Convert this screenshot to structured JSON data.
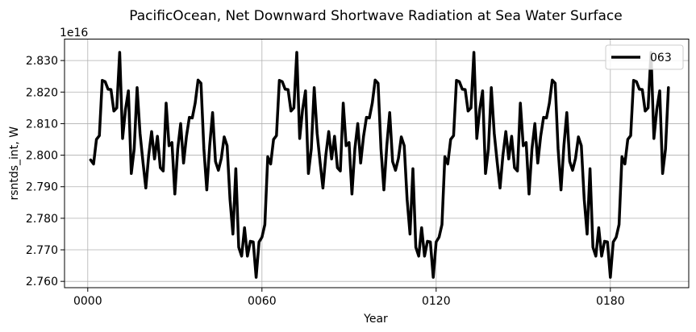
{
  "chart_data": {
    "type": "line",
    "title": "PacificOcean, Net Downward Shortwave Radiation at Sea Water Surface",
    "xlabel": "Year",
    "ylabel": "rsntds_int, W",
    "y_offset_label": "1e16",
    "xlim": [
      -8,
      207
    ],
    "ylim": [
      2.758,
      2.8368
    ],
    "x_ticks": [
      0,
      60,
      120,
      180
    ],
    "x_tick_labels": [
      "0000",
      "0060",
      "0120",
      "0180"
    ],
    "y_ticks": [
      2.76,
      2.77,
      2.78,
      2.79,
      2.8,
      2.81,
      2.82,
      2.83
    ],
    "y_tick_labels": [
      "2.760",
      "2.770",
      "2.780",
      "2.790",
      "2.800",
      "2.810",
      "2.820",
      "2.830"
    ],
    "grid": true,
    "legend_position": "top-right",
    "series": [
      {
        "name": "063",
        "color": "#000000",
        "x": [
          1,
          2,
          3,
          4,
          5,
          6,
          7,
          8,
          9,
          10,
          11,
          12,
          13,
          14,
          15,
          16,
          17,
          18,
          19,
          20,
          21,
          22,
          23,
          24,
          25,
          26,
          27,
          28,
          29,
          30,
          31,
          32,
          33,
          34,
          35,
          36,
          37,
          38,
          39,
          40,
          41,
          42,
          43,
          44,
          45,
          46,
          47,
          48,
          49,
          50,
          51,
          52,
          53,
          54,
          55,
          56,
          57,
          58,
          59,
          60,
          61,
          62,
          63,
          64,
          65,
          66,
          67,
          68,
          69,
          70,
          71,
          72,
          73,
          74,
          75,
          76,
          77,
          78,
          79,
          80,
          81,
          82,
          83,
          84,
          85,
          86,
          87,
          88,
          89,
          90,
          91,
          92,
          93,
          94,
          95,
          96,
          97,
          98,
          99,
          100,
          101,
          102,
          103,
          104,
          105,
          106,
          107,
          108,
          109,
          110,
          111,
          112,
          113,
          114,
          115,
          116,
          117,
          118,
          119,
          120,
          121,
          122,
          123,
          124,
          125,
          126,
          127,
          128,
          129,
          130,
          131,
          132,
          133,
          134,
          135,
          136,
          137,
          138,
          139,
          140,
          141,
          142,
          143,
          144,
          145,
          146,
          147,
          148,
          149,
          150,
          151,
          152,
          153,
          154,
          155,
          156,
          157,
          158,
          159,
          160,
          161,
          162,
          163,
          164,
          165,
          166,
          167,
          168,
          169,
          170,
          171,
          172,
          173,
          174,
          175,
          176,
          177,
          178,
          179,
          180,
          181,
          182,
          183,
          184,
          185,
          186,
          187,
          188,
          189,
          190,
          191,
          192,
          193,
          194,
          195,
          196,
          197,
          198,
          199,
          200
        ],
        "values": [
          2.7985,
          2.7972,
          2.805,
          2.8062,
          2.8237,
          2.8233,
          2.8209,
          2.8208,
          2.814,
          2.815,
          2.8326,
          2.8053,
          2.8145,
          2.8204,
          2.7942,
          2.802,
          2.8214,
          2.807,
          2.798,
          2.7896,
          2.8,
          2.8075,
          2.7988,
          2.806,
          2.796,
          2.795,
          2.8165,
          2.803,
          2.804,
          2.7877,
          2.802,
          2.81,
          2.7975,
          2.806,
          2.812,
          2.8118,
          2.8165,
          2.8238,
          2.8228,
          2.802,
          2.789,
          2.803,
          2.8135,
          2.798,
          2.7952,
          2.799,
          2.8058,
          2.803,
          2.786,
          2.775,
          2.7957,
          2.7708,
          2.768,
          2.777,
          2.768,
          2.7727,
          2.7725,
          2.7613,
          2.7725,
          2.774,
          2.778,
          2.7995,
          2.7972,
          2.805,
          2.8062,
          2.8237,
          2.8233,
          2.8209,
          2.8208,
          2.814,
          2.815,
          2.8326,
          2.8053,
          2.8145,
          2.8204,
          2.7942,
          2.802,
          2.8214,
          2.807,
          2.798,
          2.7896,
          2.8,
          2.8075,
          2.7988,
          2.806,
          2.796,
          2.795,
          2.8165,
          2.803,
          2.804,
          2.7877,
          2.802,
          2.81,
          2.7975,
          2.806,
          2.812,
          2.8118,
          2.8165,
          2.8238,
          2.8228,
          2.802,
          2.789,
          2.803,
          2.8135,
          2.798,
          2.7952,
          2.799,
          2.8058,
          2.803,
          2.786,
          2.775,
          2.7957,
          2.7708,
          2.768,
          2.777,
          2.768,
          2.7727,
          2.7725,
          2.7613,
          2.7725,
          2.774,
          2.778,
          2.7995,
          2.7972,
          2.805,
          2.8062,
          2.8237,
          2.8233,
          2.8209,
          2.8208,
          2.814,
          2.815,
          2.8326,
          2.8053,
          2.8145,
          2.8204,
          2.7942,
          2.802,
          2.8214,
          2.807,
          2.798,
          2.7896,
          2.8,
          2.8075,
          2.7988,
          2.806,
          2.796,
          2.795,
          2.8165,
          2.803,
          2.804,
          2.7877,
          2.802,
          2.81,
          2.7975,
          2.806,
          2.812,
          2.8118,
          2.8165,
          2.8238,
          2.8228,
          2.802,
          2.789,
          2.803,
          2.8135,
          2.798,
          2.7952,
          2.799,
          2.8058,
          2.803,
          2.786,
          2.775,
          2.7957,
          2.7708,
          2.768,
          2.777,
          2.768,
          2.7727,
          2.7725,
          2.7613,
          2.7725,
          2.774,
          2.778,
          2.7995,
          2.7972,
          2.805,
          2.8062,
          2.8237,
          2.8233,
          2.8209,
          2.8208,
          2.814,
          2.815,
          2.8326,
          2.8053,
          2.8145,
          2.8204,
          2.7942,
          2.802,
          2.8214
        ]
      }
    ]
  }
}
